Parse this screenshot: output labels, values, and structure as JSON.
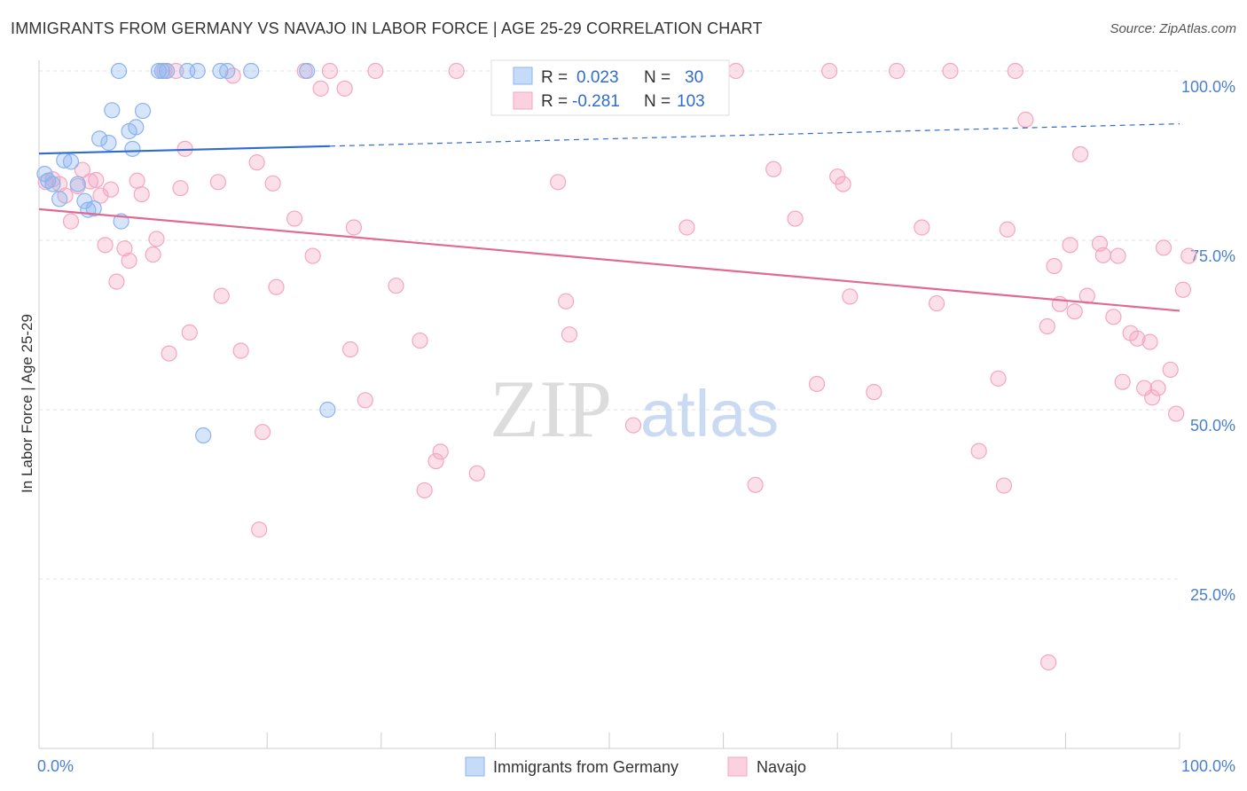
{
  "header": {
    "title": "IMMIGRANTS FROM GERMANY VS NAVAJO IN LABOR FORCE | AGE 25-29 CORRELATION CHART",
    "source": "Source: ZipAtlas.com"
  },
  "watermark": {
    "zip": "ZIP",
    "atlas": "atlas"
  },
  "stats": {
    "r_label": "R =",
    "n_label": "N =",
    "germany": {
      "r": "0.023",
      "n": "30"
    },
    "navajo": {
      "r": "-0.281",
      "n": "103"
    }
  },
  "legend": {
    "germany": "Immigrants from Germany",
    "navajo": "Navajo"
  },
  "chart_data": {
    "type": "scatter",
    "title": "IMMIGRANTS FROM GERMANY VS NAVAJO IN LABOR FORCE | AGE 25-29 CORRELATION CHART",
    "xlabel": "",
    "ylabel": "In Labor Force | Age 25-29",
    "xlim": [
      0,
      100
    ],
    "ylim": [
      0,
      100
    ],
    "x_tick_labels": [
      "0.0%",
      "100.0%"
    ],
    "y_tick_labels": [
      "100.0%",
      "75.0%",
      "50.0%",
      "25.0%"
    ],
    "y_ticks": [
      100,
      75,
      50,
      25
    ],
    "grid": true,
    "legend_position": "bottom-center",
    "colors": {
      "germany": "#8ab4f0",
      "germany_line": "#2f6bd0",
      "navajo": "#f4a6c0",
      "navajo_line": "#e06a94"
    },
    "series": [
      {
        "name": "Immigrants from Germany",
        "trend": {
          "x": [
            0,
            25.5
          ],
          "y": [
            87.8,
            88.9
          ],
          "dashed_to": [
            100,
            92.2
          ]
        },
        "points": [
          [
            0.5,
            84.8
          ],
          [
            0.8,
            83.8
          ],
          [
            1.2,
            83.3
          ],
          [
            1.8,
            81.1
          ],
          [
            2.2,
            86.8
          ],
          [
            2.8,
            86.6
          ],
          [
            3.4,
            83.3
          ],
          [
            4.0,
            80.8
          ],
          [
            4.3,
            79.5
          ],
          [
            4.8,
            79.7
          ],
          [
            5.3,
            90.0
          ],
          [
            6.1,
            89.4
          ],
          [
            6.4,
            94.2
          ],
          [
            7.2,
            77.8
          ],
          [
            7.0,
            100
          ],
          [
            7.9,
            91.1
          ],
          [
            8.2,
            88.5
          ],
          [
            8.5,
            91.7
          ],
          [
            9.1,
            94.1
          ],
          [
            10.5,
            100
          ],
          [
            10.8,
            100
          ],
          [
            11.2,
            100
          ],
          [
            13.0,
            100
          ],
          [
            13.9,
            100
          ],
          [
            14.4,
            46.2
          ],
          [
            15.9,
            100
          ],
          [
            16.5,
            100
          ],
          [
            18.6,
            100
          ],
          [
            23.5,
            100
          ],
          [
            25.3,
            50.0
          ]
        ]
      },
      {
        "name": "Navajo",
        "trend": {
          "x": [
            0,
            100
          ],
          "y": [
            79.6,
            64.6
          ]
        },
        "points": [
          [
            0.6,
            83.6
          ],
          [
            1.2,
            84.0
          ],
          [
            1.8,
            83.3
          ],
          [
            2.3,
            81.6
          ],
          [
            2.8,
            77.8
          ],
          [
            3.4,
            83.0
          ],
          [
            3.8,
            85.4
          ],
          [
            4.5,
            83.7
          ],
          [
            5.0,
            83.9
          ],
          [
            5.4,
            81.6
          ],
          [
            5.8,
            74.3
          ],
          [
            6.3,
            82.5
          ],
          [
            6.8,
            68.9
          ],
          [
            7.5,
            73.8
          ],
          [
            7.9,
            72.0
          ],
          [
            8.6,
            83.8
          ],
          [
            9.0,
            81.8
          ],
          [
            10.0,
            72.9
          ],
          [
            10.3,
            75.2
          ],
          [
            11.0,
            100
          ],
          [
            11.4,
            58.3
          ],
          [
            12.0,
            100
          ],
          [
            12.4,
            82.7
          ],
          [
            12.8,
            88.5
          ],
          [
            13.2,
            61.4
          ],
          [
            15.7,
            83.6
          ],
          [
            16.0,
            66.8
          ],
          [
            17.0,
            99.3
          ],
          [
            17.7,
            58.7
          ],
          [
            19.1,
            86.5
          ],
          [
            19.6,
            46.7
          ],
          [
            19.3,
            32.3
          ],
          [
            20.5,
            83.4
          ],
          [
            20.8,
            68.1
          ],
          [
            22.4,
            78.2
          ],
          [
            23.3,
            100
          ],
          [
            24.0,
            72.7
          ],
          [
            24.7,
            97.4
          ],
          [
            25.5,
            100
          ],
          [
            26.8,
            97.4
          ],
          [
            27.3,
            58.9
          ],
          [
            27.6,
            76.9
          ],
          [
            28.6,
            51.4
          ],
          [
            29.5,
            100
          ],
          [
            31.3,
            68.3
          ],
          [
            33.4,
            60.2
          ],
          [
            33.8,
            38.1
          ],
          [
            34.8,
            42.4
          ],
          [
            35.2,
            43.8
          ],
          [
            36.6,
            100
          ],
          [
            38.4,
            40.6
          ],
          [
            40.6,
            100
          ],
          [
            45.5,
            83.6
          ],
          [
            46.2,
            66.0
          ],
          [
            46.5,
            61.1
          ],
          [
            49.4,
            100
          ],
          [
            52.1,
            47.7
          ],
          [
            56.4,
            100
          ],
          [
            56.8,
            76.9
          ],
          [
            61.1,
            100
          ],
          [
            62.8,
            38.9
          ],
          [
            64.4,
            85.5
          ],
          [
            66.3,
            78.2
          ],
          [
            68.2,
            53.8
          ],
          [
            69.3,
            100
          ],
          [
            70.0,
            84.4
          ],
          [
            70.5,
            83.3
          ],
          [
            71.1,
            66.7
          ],
          [
            73.2,
            52.6
          ],
          [
            75.2,
            100
          ],
          [
            77.4,
            76.9
          ],
          [
            78.7,
            65.7
          ],
          [
            79.9,
            100
          ],
          [
            82.4,
            43.9
          ],
          [
            84.1,
            54.6
          ],
          [
            84.6,
            38.8
          ],
          [
            84.9,
            76.6
          ],
          [
            85.6,
            100
          ],
          [
            86.5,
            92.8
          ],
          [
            88.4,
            62.3
          ],
          [
            88.5,
            12.7
          ],
          [
            89.0,
            71.2
          ],
          [
            89.5,
            65.6
          ],
          [
            90.4,
            74.3
          ],
          [
            90.8,
            64.5
          ],
          [
            91.3,
            87.7
          ],
          [
            91.9,
            66.8
          ],
          [
            93.0,
            74.5
          ],
          [
            93.3,
            72.8
          ],
          [
            94.2,
            63.7
          ],
          [
            94.6,
            72.7
          ],
          [
            95.0,
            54.1
          ],
          [
            95.7,
            61.3
          ],
          [
            96.3,
            60.5
          ],
          [
            96.9,
            53.2
          ],
          [
            97.4,
            60.0
          ],
          [
            97.6,
            51.8
          ],
          [
            98.1,
            53.2
          ],
          [
            98.6,
            73.9
          ],
          [
            99.2,
            55.9
          ],
          [
            99.7,
            49.4
          ],
          [
            100.3,
            67.7
          ],
          [
            100.8,
            72.7
          ]
        ]
      }
    ]
  }
}
